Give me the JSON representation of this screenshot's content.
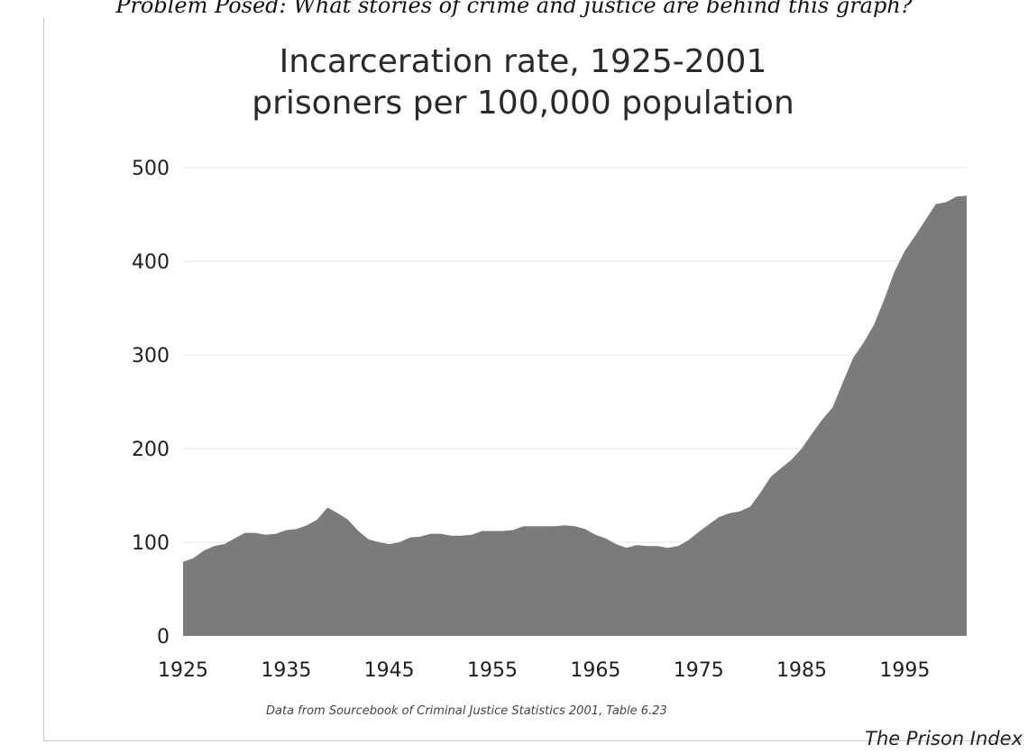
{
  "page": {
    "question": "Problem Posed: What stories of crime and justice are behind this graph?",
    "source_note": "Data from Sourcebook of Criminal Justice Statistics 2001, Table 6.23",
    "branding": "The Prison Index"
  },
  "chart_data": {
    "type": "area",
    "title_lines": [
      "Incarceration rate, 1925-2001",
      "prisoners per 100,000 population"
    ],
    "xlabel": "",
    "ylabel": "",
    "xlim": [
      1925,
      2001
    ],
    "ylim": [
      0,
      500
    ],
    "x_ticks": [
      1925,
      1935,
      1945,
      1955,
      1965,
      1975,
      1985,
      1995
    ],
    "y_ticks": [
      0,
      100,
      200,
      300,
      400,
      500
    ],
    "grid": true,
    "fill_color": "#7b7b7b",
    "series": [
      {
        "x": [
          1925,
          1926,
          1927,
          1928,
          1929,
          1930,
          1931,
          1932,
          1933,
          1934,
          1935,
          1936,
          1937,
          1938,
          1939,
          1940,
          1941,
          1942,
          1943,
          1944,
          1945,
          1946,
          1947,
          1948,
          1949,
          1950,
          1951,
          1952,
          1953,
          1954,
          1955,
          1956,
          1957,
          1958,
          1959,
          1960,
          1961,
          1962,
          1963,
          1964,
          1965,
          1966,
          1967,
          1968,
          1969,
          1970,
          1971,
          1972,
          1973,
          1974,
          1975,
          1976,
          1977,
          1978,
          1979,
          1980,
          1981,
          1982,
          1983,
          1984,
          1985,
          1986,
          1987,
          1988,
          1989,
          1990,
          1991,
          1992,
          1993,
          1994,
          1995,
          1996,
          1997,
          1998,
          1999,
          2000,
          2001
        ],
        "values": [
          79,
          83,
          91,
          96,
          98,
          104,
          110,
          110,
          108,
          109,
          113,
          114,
          118,
          124,
          137,
          131,
          124,
          112,
          103,
          100,
          98,
          100,
          105,
          106,
          109,
          109,
          107,
          107,
          108,
          112,
          112,
          112,
          113,
          117,
          117,
          117,
          117,
          118,
          117,
          114,
          108,
          104,
          98,
          94,
          97,
          96,
          96,
          94,
          96,
          102,
          111,
          119,
          127,
          131,
          133,
          138,
          153,
          170,
          179,
          188,
          200,
          216,
          231,
          244,
          271,
          297,
          313,
          332,
          359,
          389,
          411,
          427,
          444,
          461,
          463,
          469,
          470
        ]
      }
    ]
  }
}
